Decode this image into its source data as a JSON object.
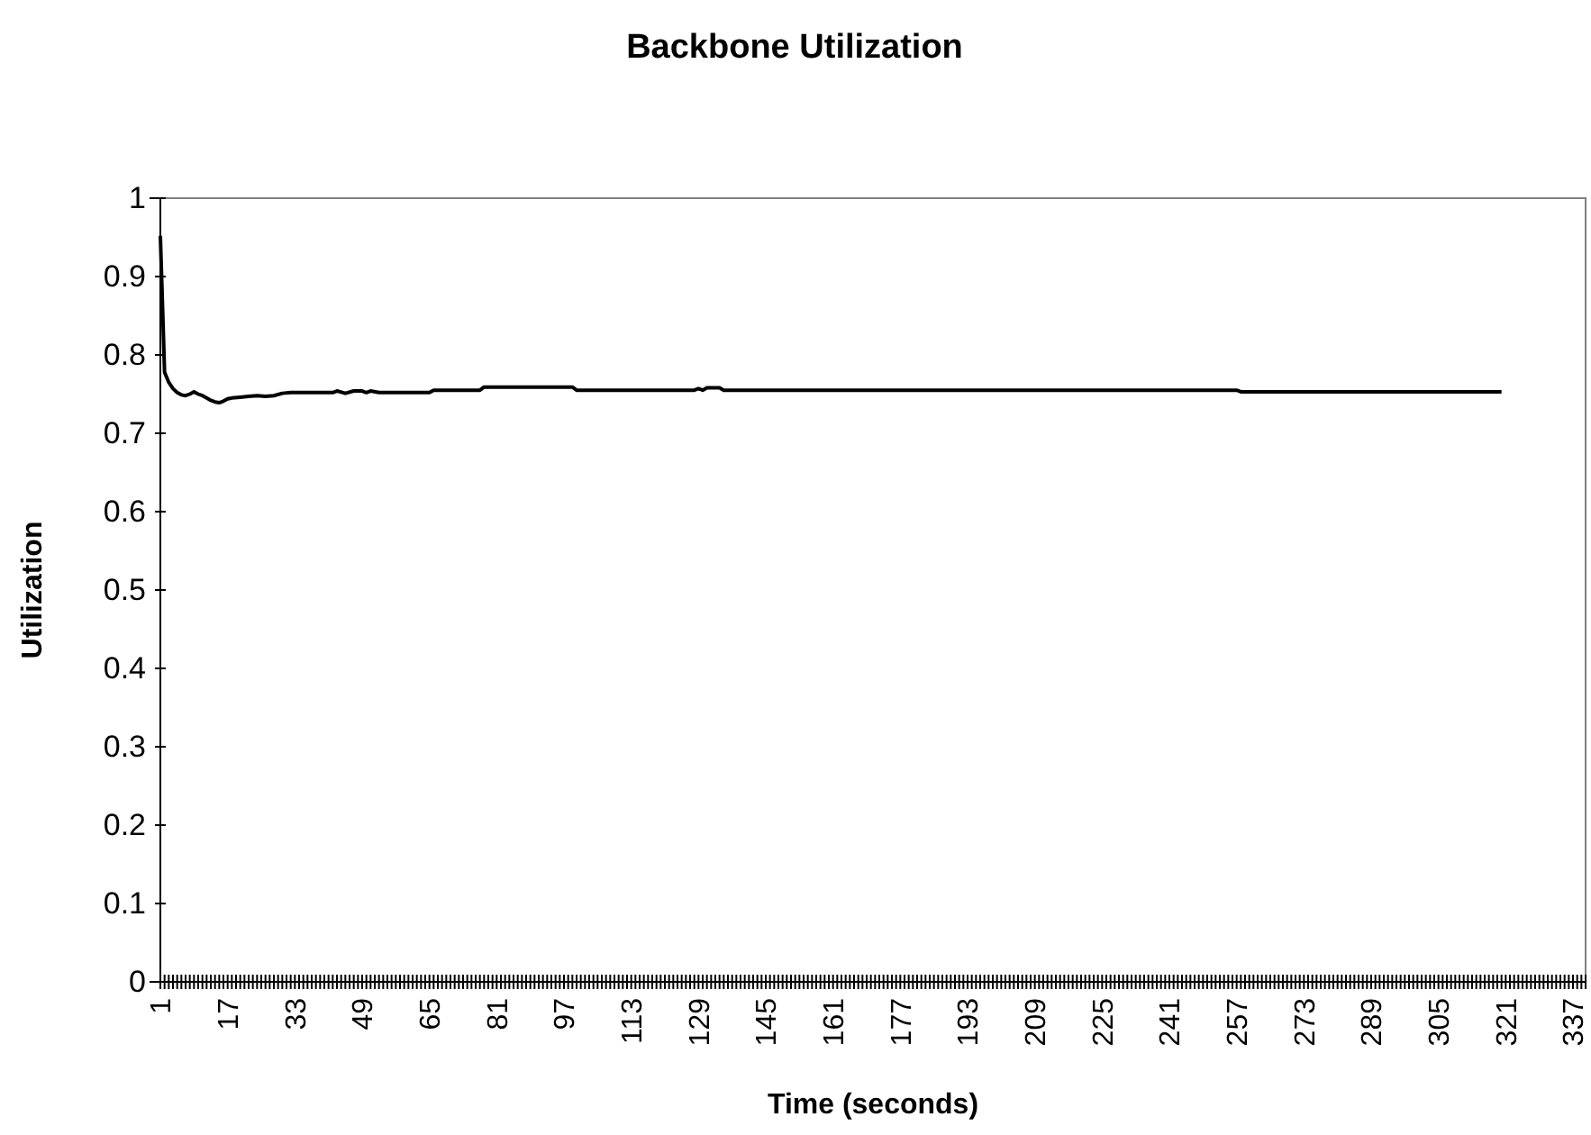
{
  "chart_data": {
    "type": "line",
    "title": "Backbone Utilization",
    "xlabel": "Time (seconds)",
    "ylabel": "Utilization",
    "xlim": [
      1,
      340
    ],
    "ylim": [
      0,
      1
    ],
    "yticks": [
      0,
      0.1,
      0.2,
      0.3,
      0.4,
      0.5,
      0.6,
      0.7,
      0.8,
      0.9,
      1
    ],
    "xticks": [
      1,
      {
        "value": 2,
        "label": null
      },
      {
        "value": 3,
        "label": null
      },
      {
        "value": 4,
        "label": null
      },
      {
        "value": 5,
        "label": null
      },
      {
        "value": 6,
        "label": null
      },
      {
        "value": 7,
        "label": null
      },
      {
        "value": 8,
        "label": null
      },
      {
        "value": 9,
        "label": null
      },
      {
        "value": 10,
        "label": null
      },
      {
        "value": 11,
        "label": null
      },
      {
        "value": 12,
        "label": null
      },
      {
        "value": 13,
        "label": null
      },
      {
        "value": 14,
        "label": null
      },
      {
        "value": 15,
        "label": null
      },
      {
        "value": 16,
        "label": null
      },
      17,
      {
        "value": 18,
        "label": null
      },
      {
        "value": 19,
        "label": null
      },
      {
        "value": 20,
        "label": null
      },
      {
        "value": 21,
        "label": null
      },
      {
        "value": 22,
        "label": null
      },
      {
        "value": 23,
        "label": null
      },
      {
        "value": 24,
        "label": null
      },
      {
        "value": 25,
        "label": null
      },
      {
        "value": 26,
        "label": null
      },
      {
        "value": 27,
        "label": null
      },
      {
        "value": 28,
        "label": null
      },
      {
        "value": 29,
        "label": null
      },
      {
        "value": 30,
        "label": null
      },
      {
        "value": 31,
        "label": null
      },
      {
        "value": 32,
        "label": null
      },
      33,
      {
        "value": 34,
        "label": null
      },
      {
        "value": 35,
        "label": null
      },
      {
        "value": 36,
        "label": null
      },
      {
        "value": 37,
        "label": null
      },
      {
        "value": 38,
        "label": null
      },
      {
        "value": 39,
        "label": null
      },
      {
        "value": 40,
        "label": null
      },
      {
        "value": 41,
        "label": null
      },
      {
        "value": 42,
        "label": null
      },
      {
        "value": 43,
        "label": null
      },
      {
        "value": 44,
        "label": null
      },
      {
        "value": 45,
        "label": null
      },
      {
        "value": 46,
        "label": null
      },
      {
        "value": 47,
        "label": null
      },
      {
        "value": 48,
        "label": null
      },
      49,
      {
        "value": 50,
        "label": null
      },
      {
        "value": 51,
        "label": null
      },
      {
        "value": 52,
        "label": null
      },
      {
        "value": 53,
        "label": null
      },
      {
        "value": 54,
        "label": null
      },
      {
        "value": 55,
        "label": null
      },
      {
        "value": 56,
        "label": null
      },
      {
        "value": 57,
        "label": null
      },
      {
        "value": 58,
        "label": null
      },
      {
        "value": 59,
        "label": null
      },
      {
        "value": 60,
        "label": null
      },
      {
        "value": 61,
        "label": null
      },
      {
        "value": 62,
        "label": null
      },
      {
        "value": 63,
        "label": null
      },
      {
        "value": 64,
        "label": null
      },
      65,
      {
        "value": 66,
        "label": null
      },
      {
        "value": 67,
        "label": null
      },
      {
        "value": 68,
        "label": null
      },
      {
        "value": 69,
        "label": null
      },
      {
        "value": 70,
        "label": null
      },
      {
        "value": 71,
        "label": null
      },
      {
        "value": 72,
        "label": null
      },
      {
        "value": 73,
        "label": null
      },
      {
        "value": 74,
        "label": null
      },
      {
        "value": 75,
        "label": null
      },
      {
        "value": 76,
        "label": null
      },
      {
        "value": 77,
        "label": null
      },
      {
        "value": 78,
        "label": null
      },
      {
        "value": 79,
        "label": null
      },
      {
        "value": 80,
        "label": null
      },
      81,
      {
        "value": 82,
        "label": null
      },
      {
        "value": 83,
        "label": null
      },
      {
        "value": 84,
        "label": null
      },
      {
        "value": 85,
        "label": null
      },
      {
        "value": 86,
        "label": null
      },
      {
        "value": 87,
        "label": null
      },
      {
        "value": 88,
        "label": null
      },
      {
        "value": 89,
        "label": null
      },
      {
        "value": 90,
        "label": null
      },
      {
        "value": 91,
        "label": null
      },
      {
        "value": 92,
        "label": null
      },
      {
        "value": 93,
        "label": null
      },
      {
        "value": 94,
        "label": null
      },
      {
        "value": 95,
        "label": null
      },
      {
        "value": 96,
        "label": null
      },
      97,
      {
        "value": 98,
        "label": null
      },
      {
        "value": 99,
        "label": null
      },
      {
        "value": 100,
        "label": null
      },
      {
        "value": 101,
        "label": null
      },
      {
        "value": 102,
        "label": null
      },
      {
        "value": 103,
        "label": null
      },
      {
        "value": 104,
        "label": null
      },
      {
        "value": 105,
        "label": null
      },
      {
        "value": 106,
        "label": null
      },
      {
        "value": 107,
        "label": null
      },
      {
        "value": 108,
        "label": null
      },
      {
        "value": 109,
        "label": null
      },
      {
        "value": 110,
        "label": null
      },
      {
        "value": 111,
        "label": null
      },
      {
        "value": 112,
        "label": null
      },
      113,
      {
        "value": 114,
        "label": null
      },
      {
        "value": 115,
        "label": null
      },
      {
        "value": 116,
        "label": null
      },
      {
        "value": 117,
        "label": null
      },
      {
        "value": 118,
        "label": null
      },
      {
        "value": 119,
        "label": null
      },
      {
        "value": 120,
        "label": null
      },
      {
        "value": 121,
        "label": null
      },
      {
        "value": 122,
        "label": null
      },
      {
        "value": 123,
        "label": null
      },
      {
        "value": 124,
        "label": null
      },
      {
        "value": 125,
        "label": null
      },
      {
        "value": 126,
        "label": null
      },
      {
        "value": 127,
        "label": null
      },
      {
        "value": 128,
        "label": null
      },
      129,
      {
        "value": 130,
        "label": null
      },
      {
        "value": 131,
        "label": null
      },
      {
        "value": 132,
        "label": null
      },
      {
        "value": 133,
        "label": null
      },
      {
        "value": 134,
        "label": null
      },
      {
        "value": 135,
        "label": null
      },
      {
        "value": 136,
        "label": null
      },
      {
        "value": 137,
        "label": null
      },
      {
        "value": 138,
        "label": null
      },
      {
        "value": 139,
        "label": null
      },
      {
        "value": 140,
        "label": null
      },
      {
        "value": 141,
        "label": null
      },
      {
        "value": 142,
        "label": null
      },
      {
        "value": 143,
        "label": null
      },
      {
        "value": 144,
        "label": null
      },
      145,
      {
        "value": 146,
        "label": null
      },
      {
        "value": 147,
        "label": null
      },
      {
        "value": 148,
        "label": null
      },
      {
        "value": 149,
        "label": null
      },
      {
        "value": 150,
        "label": null
      },
      {
        "value": 151,
        "label": null
      },
      {
        "value": 152,
        "label": null
      },
      {
        "value": 153,
        "label": null
      },
      {
        "value": 154,
        "label": null
      },
      {
        "value": 155,
        "label": null
      },
      {
        "value": 156,
        "label": null
      },
      {
        "value": 157,
        "label": null
      },
      {
        "value": 158,
        "label": null
      },
      {
        "value": 159,
        "label": null
      },
      {
        "value": 160,
        "label": null
      },
      161,
      {
        "value": 162,
        "label": null
      },
      {
        "value": 163,
        "label": null
      },
      {
        "value": 164,
        "label": null
      },
      {
        "value": 165,
        "label": null
      },
      {
        "value": 166,
        "label": null
      },
      {
        "value": 167,
        "label": null
      },
      {
        "value": 168,
        "label": null
      },
      {
        "value": 169,
        "label": null
      },
      {
        "value": 170,
        "label": null
      },
      {
        "value": 171,
        "label": null
      },
      {
        "value": 172,
        "label": null
      },
      {
        "value": 173,
        "label": null
      },
      {
        "value": 174,
        "label": null
      },
      {
        "value": 175,
        "label": null
      },
      {
        "value": 176,
        "label": null
      },
      177,
      {
        "value": 178,
        "label": null
      },
      {
        "value": 179,
        "label": null
      },
      {
        "value": 180,
        "label": null
      },
      {
        "value": 181,
        "label": null
      },
      {
        "value": 182,
        "label": null
      },
      {
        "value": 183,
        "label": null
      },
      {
        "value": 184,
        "label": null
      },
      {
        "value": 185,
        "label": null
      },
      {
        "value": 186,
        "label": null
      },
      {
        "value": 187,
        "label": null
      },
      {
        "value": 188,
        "label": null
      },
      {
        "value": 189,
        "label": null
      },
      {
        "value": 190,
        "label": null
      },
      {
        "value": 191,
        "label": null
      },
      {
        "value": 192,
        "label": null
      },
      193,
      {
        "value": 194,
        "label": null
      },
      {
        "value": 195,
        "label": null
      },
      {
        "value": 196,
        "label": null
      },
      {
        "value": 197,
        "label": null
      },
      {
        "value": 198,
        "label": null
      },
      {
        "value": 199,
        "label": null
      },
      {
        "value": 200,
        "label": null
      },
      {
        "value": 201,
        "label": null
      },
      {
        "value": 202,
        "label": null
      },
      {
        "value": 203,
        "label": null
      },
      {
        "value": 204,
        "label": null
      },
      {
        "value": 205,
        "label": null
      },
      {
        "value": 206,
        "label": null
      },
      {
        "value": 207,
        "label": null
      },
      {
        "value": 208,
        "label": null
      },
      209,
      {
        "value": 210,
        "label": null
      },
      {
        "value": 211,
        "label": null
      },
      {
        "value": 212,
        "label": null
      },
      {
        "value": 213,
        "label": null
      },
      {
        "value": 214,
        "label": null
      },
      {
        "value": 215,
        "label": null
      },
      {
        "value": 216,
        "label": null
      },
      {
        "value": 217,
        "label": null
      },
      {
        "value": 218,
        "label": null
      },
      {
        "value": 219,
        "label": null
      },
      {
        "value": 220,
        "label": null
      },
      {
        "value": 221,
        "label": null
      },
      {
        "value": 222,
        "label": null
      },
      {
        "value": 223,
        "label": null
      },
      {
        "value": 224,
        "label": null
      },
      225,
      {
        "value": 226,
        "label": null
      },
      {
        "value": 227,
        "label": null
      },
      {
        "value": 228,
        "label": null
      },
      {
        "value": 229,
        "label": null
      },
      {
        "value": 230,
        "label": null
      },
      {
        "value": 231,
        "label": null
      },
      {
        "value": 232,
        "label": null
      },
      {
        "value": 233,
        "label": null
      },
      {
        "value": 234,
        "label": null
      },
      {
        "value": 235,
        "label": null
      },
      {
        "value": 236,
        "label": null
      },
      {
        "value": 237,
        "label": null
      },
      {
        "value": 238,
        "label": null
      },
      {
        "value": 239,
        "label": null
      },
      {
        "value": 240,
        "label": null
      },
      241,
      {
        "value": 242,
        "label": null
      },
      {
        "value": 243,
        "label": null
      },
      {
        "value": 244,
        "label": null
      },
      {
        "value": 245,
        "label": null
      },
      {
        "value": 246,
        "label": null
      },
      {
        "value": 247,
        "label": null
      },
      {
        "value": 248,
        "label": null
      },
      {
        "value": 249,
        "label": null
      },
      {
        "value": 250,
        "label": null
      },
      {
        "value": 251,
        "label": null
      },
      {
        "value": 252,
        "label": null
      },
      {
        "value": 253,
        "label": null
      },
      {
        "value": 254,
        "label": null
      },
      {
        "value": 255,
        "label": null
      },
      {
        "value": 256,
        "label": null
      },
      257,
      {
        "value": 258,
        "label": null
      },
      {
        "value": 259,
        "label": null
      },
      {
        "value": 260,
        "label": null
      },
      {
        "value": 261,
        "label": null
      },
      {
        "value": 262,
        "label": null
      },
      {
        "value": 263,
        "label": null
      },
      {
        "value": 264,
        "label": null
      },
      {
        "value": 265,
        "label": null
      },
      {
        "value": 266,
        "label": null
      },
      {
        "value": 267,
        "label": null
      },
      {
        "value": 268,
        "label": null
      },
      {
        "value": 269,
        "label": null
      },
      {
        "value": 270,
        "label": null
      },
      {
        "value": 271,
        "label": null
      },
      {
        "value": 272,
        "label": null
      },
      273,
      {
        "value": 274,
        "label": null
      },
      {
        "value": 275,
        "label": null
      },
      {
        "value": 276,
        "label": null
      },
      {
        "value": 277,
        "label": null
      },
      {
        "value": 278,
        "label": null
      },
      {
        "value": 279,
        "label": null
      },
      {
        "value": 280,
        "label": null
      },
      {
        "value": 281,
        "label": null
      },
      {
        "value": 282,
        "label": null
      },
      {
        "value": 283,
        "label": null
      },
      {
        "value": 284,
        "label": null
      },
      {
        "value": 285,
        "label": null
      },
      {
        "value": 286,
        "label": null
      },
      {
        "value": 287,
        "label": null
      },
      {
        "value": 288,
        "label": null
      },
      289,
      {
        "value": 290,
        "label": null
      },
      {
        "value": 291,
        "label": null
      },
      {
        "value": 292,
        "label": null
      },
      {
        "value": 293,
        "label": null
      },
      {
        "value": 294,
        "label": null
      },
      {
        "value": 295,
        "label": null
      },
      {
        "value": 296,
        "label": null
      },
      {
        "value": 297,
        "label": null
      },
      {
        "value": 298,
        "label": null
      },
      {
        "value": 299,
        "label": null
      },
      {
        "value": 300,
        "label": null
      },
      {
        "value": 301,
        "label": null
      },
      {
        "value": 302,
        "label": null
      },
      {
        "value": 303,
        "label": null
      },
      {
        "value": 304,
        "label": null
      },
      305,
      {
        "value": 306,
        "label": null
      },
      {
        "value": 307,
        "label": null
      },
      {
        "value": 308,
        "label": null
      },
      {
        "value": 309,
        "label": null
      },
      {
        "value": 310,
        "label": null
      },
      {
        "value": 311,
        "label": null
      },
      {
        "value": 312,
        "label": null
      },
      {
        "value": 313,
        "label": null
      },
      {
        "value": 314,
        "label": null
      },
      {
        "value": 315,
        "label": null
      },
      {
        "value": 316,
        "label": null
      },
      {
        "value": 317,
        "label": null
      },
      {
        "value": 318,
        "label": null
      },
      {
        "value": 319,
        "label": null
      },
      {
        "value": 320,
        "label": null
      },
      321,
      {
        "value": 322,
        "label": null
      },
      {
        "value": 323,
        "label": null
      },
      {
        "value": 324,
        "label": null
      },
      {
        "value": 325,
        "label": null
      },
      {
        "value": 326,
        "label": null
      },
      {
        "value": 327,
        "label": null
      },
      {
        "value": 328,
        "label": null
      },
      {
        "value": 329,
        "label": null
      },
      {
        "value": 330,
        "label": null
      },
      {
        "value": 331,
        "label": null
      },
      {
        "value": 332,
        "label": null
      },
      {
        "value": 333,
        "label": null
      },
      {
        "value": 334,
        "label": null
      },
      {
        "value": 335,
        "label": null
      },
      {
        "value": 336,
        "label": null
      },
      337,
      {
        "value": 338,
        "label": null
      },
      {
        "value": 339,
        "label": null
      },
      {
        "value": 340,
        "label": null
      }
    ],
    "x": [
      1,
      2,
      3,
      4,
      5,
      6,
      7,
      8,
      9,
      10,
      11,
      12,
      13,
      14,
      15,
      16,
      17,
      18,
      20,
      22,
      24,
      26,
      28,
      30,
      32,
      42,
      43,
      45,
      47,
      49,
      50,
      51,
      53,
      65,
      66,
      77,
      78,
      99,
      100,
      128,
      129,
      130,
      131,
      134,
      135,
      257,
      258,
      320
    ],
    "series": [
      {
        "color": "#000000",
        "values": [
          0.952,
          0.778,
          0.765,
          0.757,
          0.752,
          0.749,
          0.748,
          0.75,
          0.753,
          0.75,
          0.748,
          0.745,
          0.742,
          0.74,
          0.739,
          0.741,
          0.744,
          0.745,
          0.746,
          0.747,
          0.748,
          0.747,
          0.748,
          0.751,
          0.752,
          0.752,
          0.754,
          0.751,
          0.754,
          0.754,
          0.752,
          0.754,
          0.752,
          0.752,
          0.755,
          0.755,
          0.759,
          0.759,
          0.755,
          0.755,
          0.757,
          0.755,
          0.758,
          0.758,
          0.755,
          0.755,
          0.753,
          0.753
        ]
      }
    ],
    "grid": false,
    "marker": "none",
    "line_style": "solid"
  }
}
